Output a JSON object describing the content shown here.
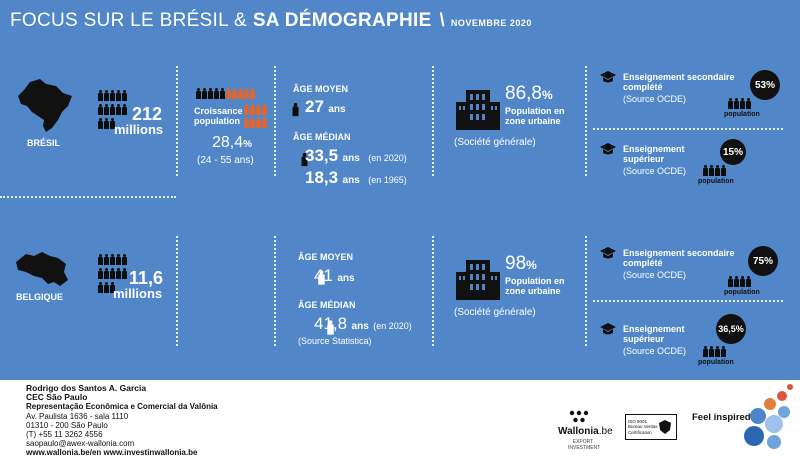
{
  "header": {
    "title_light": "FOCUS SUR LE BRÉSIL &",
    "title_bold": "SA DÉMOGRAPHIE",
    "slash": "\\",
    "date": "NOVEMBRE 2020"
  },
  "bresil": {
    "label": "BRÉSIL",
    "population_value": "212",
    "population_unit": "millions",
    "growth_label": "Croissance population",
    "growth_value": "28,4",
    "growth_pct": "%",
    "growth_range": "(24 - 55 ans)",
    "age_moyen_label": "ÂGE MOYEN",
    "age_moyen_value": "27",
    "age_unit": "ans",
    "age_median_label": "ÂGE MÉDIAN",
    "median_2020_value": "33,5",
    "median_2020_note": "(en 2020)",
    "median_1965_value": "18,3",
    "median_1965_note": "(en 1965)",
    "urban_value": "86,8",
    "urban_pct": "%",
    "urban_label": "Population en zone urbaine",
    "urban_source": "(Société générale)",
    "edu_secondary_label": "Enseignement secondaire complété",
    "edu_secondary_source": "(Source OCDE)",
    "edu_secondary_value": "53%",
    "edu_superior_label": "Enseignement supérieur",
    "edu_superior_source": "(Source OCDE)",
    "edu_superior_value": "15%",
    "population_tag": "population"
  },
  "belgique": {
    "label": "BELGIQUE",
    "population_value": "11,6",
    "population_unit": "millions",
    "age_moyen_label": "ÂGE MOYEN",
    "age_moyen_value": "41",
    "age_unit": "ans",
    "age_median_label": "ÂGE MÉDIAN",
    "median_2020_value": "41,8",
    "median_2020_note": "(en 2020)",
    "median_source": "(Source Statistica)",
    "urban_value": "98",
    "urban_pct": "%",
    "urban_label": "Population en zone urbaine",
    "urban_source": "(Société générale)",
    "edu_secondary_label": "Enseignement secondaire complété",
    "edu_secondary_source": "(Source OCDE)",
    "edu_secondary_value": "75%",
    "edu_superior_label": "Enseignement supérieur",
    "edu_superior_source": "(Source OCDE)",
    "edu_superior_value": "36,5%",
    "population_tag": "population"
  },
  "footer": {
    "name": "Rodrigo dos Santos A. Garcia",
    "office": "CEC São Paulo",
    "representation": "Representação Econômica e Comercial da Valônia",
    "address1": "Av. Paulista 1636 - sala 1110",
    "address2": "01310 - 200 São Paulo",
    "phone": "(T) +55 11 3262 4556",
    "email": "saopaulo@awex-wallonia.com",
    "sites": "www.wallonia.be/en   www.investinwallonia.be",
    "brand_name": "Wallonia",
    "brand_suffix": ".be",
    "brand_sub": "EXPORT INVESTMENT",
    "cert_text": "ISO 9001 Bureau Veritas Certification",
    "tagline": "Feel inspired"
  },
  "colors": {
    "panel": "#5187c8",
    "accent_orange": "#e0662e",
    "dark": "#0d0d0d"
  }
}
